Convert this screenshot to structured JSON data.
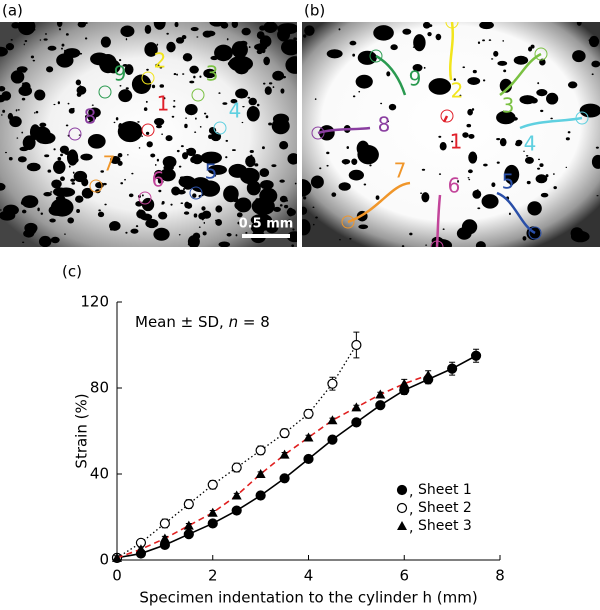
{
  "panel_labels": [
    "(a)",
    "(b)",
    "(c)"
  ],
  "scale_bar": "0.5 mm",
  "image_a": {
    "labels": [
      "1",
      "2",
      "3",
      "4",
      "5",
      "6",
      "7",
      "8",
      "9"
    ]
  },
  "image_b": {
    "labels": [
      "1",
      "2",
      "3",
      "4",
      "5",
      "6",
      "7",
      "8",
      "9"
    ]
  },
  "chart_data": {
    "type": "line",
    "annotation": [
      "Mean ± SD, ",
      "n",
      " = 8"
    ],
    "x_label": "Specimen indentation to the cylinder h (mm)",
    "y_label": "Strain (%)",
    "xlim": [
      0,
      8
    ],
    "xticks": [
      0,
      2,
      4,
      6,
      8
    ],
    "ylim": [
      0,
      120
    ],
    "yticks": [
      0,
      40,
      80,
      120
    ],
    "legend_separator": ",",
    "series": [
      {
        "name": "Sheet 1",
        "color": "#000000",
        "marker": "circle",
        "line": "solid",
        "x": [
          0,
          0.5,
          1,
          1.5,
          2,
          2.5,
          3,
          3.5,
          4,
          4.5,
          5,
          5.5,
          6,
          6.5,
          7,
          7.5
        ],
        "values": [
          1,
          3,
          7,
          12,
          17,
          23,
          30,
          38,
          47,
          56,
          64,
          72,
          79,
          84,
          89,
          95
        ],
        "errors": [
          1,
          1,
          1,
          1,
          1,
          1,
          1,
          1,
          1,
          1,
          1,
          1,
          2,
          2,
          3,
          3
        ]
      },
      {
        "name": "Sheet 2",
        "color": "#000000",
        "marker": "open-circle",
        "line": "dotted",
        "x": [
          0,
          0.5,
          1,
          1.5,
          2,
          2.5,
          3,
          3.5,
          4,
          4.5,
          5
        ],
        "values": [
          1,
          8,
          17,
          26,
          35,
          43,
          51,
          59,
          68,
          82,
          100
        ],
        "errors": [
          1,
          1,
          2,
          2,
          2,
          2,
          2,
          2,
          2,
          3,
          6
        ]
      },
      {
        "name": "Sheet 3",
        "color": "#e02020",
        "marker": "triangle",
        "line": "dashed",
        "x": [
          0,
          0.5,
          1,
          1.5,
          2,
          2.5,
          3,
          3.5,
          4,
          4.5,
          5,
          5.5,
          6,
          6.5
        ],
        "values": [
          1,
          5,
          10,
          16,
          22,
          30,
          40,
          49,
          57,
          65,
          71,
          77,
          82,
          86
        ],
        "errors": [
          1,
          1,
          1,
          1,
          1,
          1,
          1,
          1,
          1,
          1,
          1,
          1,
          2,
          2
        ]
      }
    ]
  }
}
